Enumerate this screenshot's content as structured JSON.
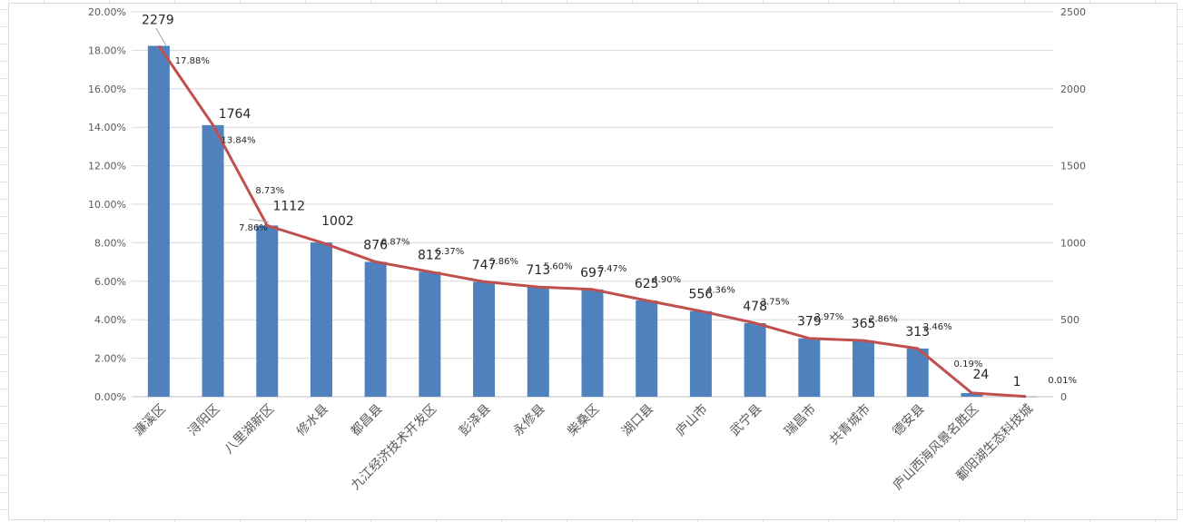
{
  "chart_data": {
    "type": "bar",
    "categories": [
      "濂溪区",
      "浔阳区",
      "八里湖新区",
      "修水县",
      "都昌县",
      "九江经济技术开发区",
      "彭泽县",
      "永修县",
      "柴桑区",
      "湖口县",
      "庐山市",
      "武宁县",
      "瑞昌市",
      "共青城市",
      "德安县",
      "庐山西海风景名胜区",
      "鄱阳湖生态科技城"
    ],
    "series": [
      {
        "values": [
          2279,
          1764,
          1112,
          1002,
          876,
          812,
          747,
          713,
          697,
          625,
          556,
          478,
          379,
          365,
          313,
          24,
          1
        ],
        "axis": "right",
        "color": "#4f81bd"
      },
      {
        "values": [
          17.88,
          13.84,
          8.73,
          7.86,
          6.87,
          6.37,
          5.86,
          5.6,
          5.47,
          4.9,
          4.36,
          3.75,
          2.97,
          2.86,
          2.46,
          0.19,
          0.01
        ],
        "axis": "left",
        "color": "#c0504d",
        "type": "line"
      }
    ],
    "value_labels": [
      "2279",
      "1764",
      "1112",
      "1002",
      "876",
      "812",
      "747",
      "713",
      "697",
      "625",
      "556",
      "478",
      "379",
      "365",
      "313",
      "24",
      "1"
    ],
    "percent_labels": [
      "17.88%",
      "13.84%",
      "8.73%",
      "7.86%",
      "6.87%",
      "6.37%",
      "5.86%",
      "5.60%",
      "5.47%",
      "4.90%",
      "4.36%",
      "3.75%",
      "2.97%",
      "2.86%",
      "2.46%",
      "0.19%",
      "0.01%"
    ],
    "left_axis": {
      "ylim": [
        0,
        20
      ],
      "ticks": [
        "0.00%",
        "2.00%",
        "4.00%",
        "6.00%",
        "8.00%",
        "10.00%",
        "12.00%",
        "14.00%",
        "16.00%",
        "18.00%",
        "20.00%"
      ]
    },
    "right_axis": {
      "ylim": [
        0,
        2500
      ],
      "ticks": [
        "0",
        "500",
        "1000",
        "1500",
        "2000",
        "2500"
      ]
    },
    "grid": true,
    "legend": false
  }
}
